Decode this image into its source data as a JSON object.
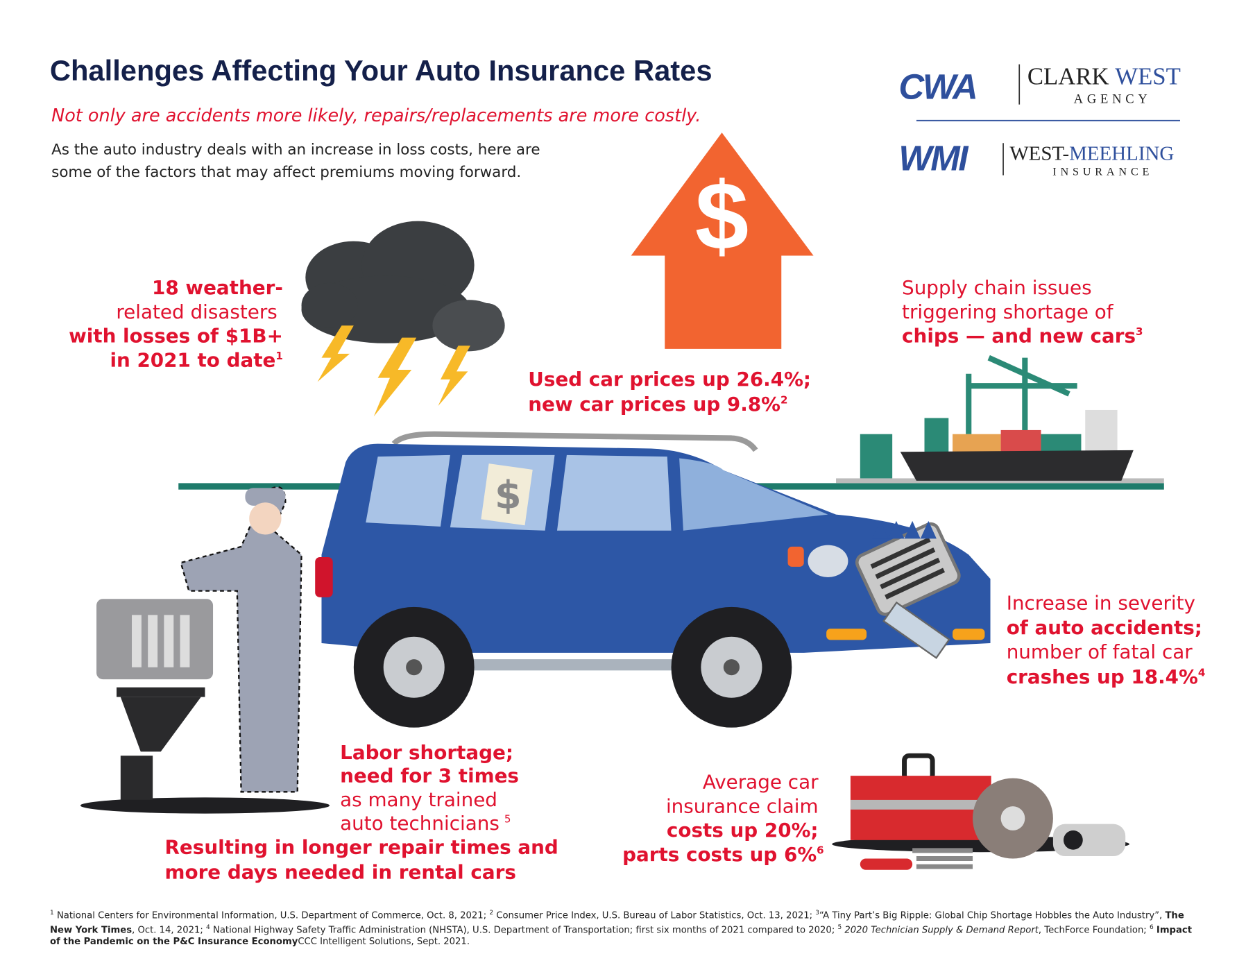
{
  "header": {
    "title": "Challenges Affecting Your Auto Insurance Rates",
    "subtitle": "Not only are accidents more likely, repairs/replacements are more costly.",
    "intro": [
      "As the auto industry deals with an increase in loss costs, here are",
      "some of the factors that may affect premiums moving forward."
    ]
  },
  "logos": [
    {
      "mark": "CWA",
      "name": [
        "CLARK",
        "WEST"
      ],
      "sub": "AGENCY"
    },
    {
      "mark": "WMI",
      "name": [
        "WEST-",
        "MEEHLING"
      ],
      "sub": "INSURANCE"
    }
  ],
  "icons": {
    "dollar": "$"
  },
  "callouts": {
    "weather": {
      "lines": [
        "18 weather-",
        "related disasters",
        "with losses of $1B+",
        "in 2021 to date"
      ],
      "note": "1"
    },
    "prices": {
      "lines": [
        "Used car prices up 26.4%;",
        "new car prices up 9.8%"
      ],
      "note": "2"
    },
    "supply": {
      "lines": [
        "Supply chain issues",
        "triggering shortage of",
        "chips — and new cars"
      ],
      "note": "3"
    },
    "severity": {
      "lines": [
        "Increase in severity",
        "of auto accidents;",
        "number of fatal car",
        "crashes up 18.4%"
      ],
      "note": "4"
    },
    "labor": {
      "lines": [
        "Labor shortage;",
        "need for 3 times",
        "as many trained",
        "auto technicians"
      ],
      "note": "5"
    },
    "result": {
      "lines": [
        "Resulting in longer repair times and",
        "more days needed in rental cars"
      ]
    },
    "claims": {
      "lines": [
        "Average car",
        "insurance claim",
        "costs up 20%;",
        "parts costs up 6%"
      ],
      "note": "6"
    }
  },
  "footnotes": [
    {
      "n": "1",
      "text": [
        "National Centers for Environmental Information, U.S. Department of Commerce, Oct. 8, 2021;"
      ]
    },
    {
      "n": "2",
      "text": [
        "Consumer Price Index, U.S. Bureau of Labor Statistics, Oct. 13, 2021;"
      ]
    },
    {
      "n": "3",
      "text": [
        "“A Tiny Part’s Big Ripple: Global Chip Shortage Hobbles the Auto Industry”,",
        "The New York Times",
        ", Oct. 14, 2021;"
      ]
    },
    {
      "n": "4",
      "text": [
        "National Highway Safety Traffic Administration (NHSTA), U.S. Department of Transportation; first six months of 2021 compared to 2020;"
      ]
    },
    {
      "n": "5",
      "text": [
        "2020 Technician Supply & Demand Report",
        ", TechForce Foundation;"
      ]
    },
    {
      "n": "6",
      "text": [
        "Impact of the Pandemic on the P&C Insurance Economy",
        "CCC Intelligent Solutions, Sept. 2021."
      ]
    }
  ]
}
